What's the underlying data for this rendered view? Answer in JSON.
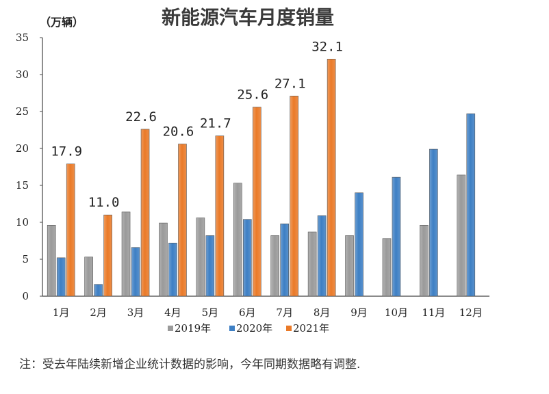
{
  "chart_data": {
    "type": "bar",
    "title": "新能源汽车月度销量",
    "unit_label": "（万辆）",
    "categories": [
      "1月",
      "2月",
      "3月",
      "4月",
      "5月",
      "6月",
      "7月",
      "8月",
      "9月",
      "10月",
      "11月",
      "12月"
    ],
    "series": [
      {
        "name": "2019年",
        "color": "#9a9a9a",
        "values": [
          9.6,
          5.3,
          11.4,
          9.9,
          10.6,
          15.3,
          8.2,
          8.7,
          8.2,
          7.8,
          9.6,
          16.4
        ]
      },
      {
        "name": "2020年",
        "color": "#3d7fc4",
        "values": [
          5.2,
          1.6,
          6.6,
          7.2,
          8.2,
          10.4,
          9.8,
          10.9,
          14.0,
          16.1,
          19.9,
          24.7
        ]
      },
      {
        "name": "2021年",
        "color": "#ea7a28",
        "values": [
          17.9,
          11.0,
          22.6,
          20.6,
          21.7,
          25.6,
          27.1,
          32.1,
          null,
          null,
          null,
          null
        ]
      }
    ],
    "data_labels": [
      "17.9",
      "11.0",
      "22.6",
      "20.6",
      "21.7",
      "25.6",
      "27.1",
      "32.1"
    ],
    "yticks": [
      "0",
      "5",
      "10",
      "15",
      "20",
      "25",
      "30",
      "35"
    ],
    "ylim": [
      0,
      35
    ],
    "grid": false,
    "legend_position": "bottom"
  },
  "note": "注：受去年陆续新增企业统计数据的影响，今年同期数据略有调整."
}
